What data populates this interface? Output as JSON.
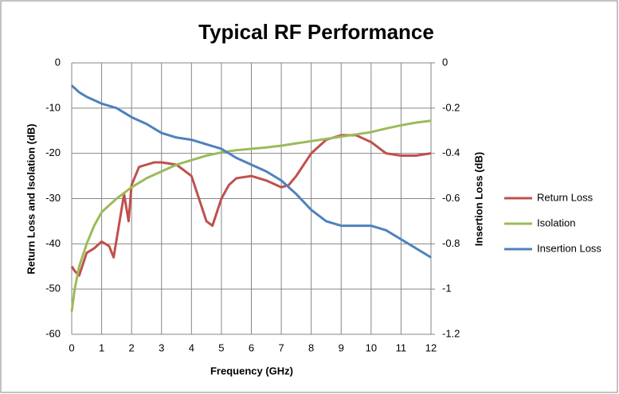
{
  "chart_data": {
    "type": "line",
    "title": "Typical RF Performance",
    "xlabel": "Frequency (GHz)",
    "ylabel": "Return Loss and Isolation (dB)",
    "y2label": "Insertion Loss (dB)",
    "xlim": [
      0,
      12
    ],
    "xticks": [
      0,
      1,
      2,
      3,
      4,
      5,
      6,
      7,
      8,
      9,
      10,
      11,
      12
    ],
    "ylim": [
      -60,
      0
    ],
    "yticks": [
      -60,
      -50,
      -40,
      -30,
      -20,
      -10,
      0
    ],
    "y2lim": [
      -1.2,
      0
    ],
    "y2ticks": [
      -1.2,
      -1,
      -0.8,
      -0.6,
      -0.4,
      -0.2,
      0
    ],
    "grid": true,
    "legend": "right",
    "series": [
      {
        "name": "Return Loss",
        "color": "#c0504d",
        "axis": "y",
        "x": [
          0,
          0.1,
          0.25,
          0.5,
          0.75,
          1,
          1.25,
          1.4,
          1.5,
          1.75,
          1.9,
          2,
          2.25,
          2.5,
          2.75,
          3,
          3.5,
          4,
          4.25,
          4.5,
          4.7,
          5,
          5.25,
          5.5,
          6,
          6.5,
          7,
          7.25,
          7.5,
          8,
          8.5,
          9,
          9.5,
          10,
          10.5,
          11,
          11.5,
          12
        ],
        "values": [
          -45,
          -46,
          -47,
          -42,
          -41,
          -39.5,
          -40.5,
          -43,
          -39,
          -29,
          -35,
          -27,
          -23,
          -22.5,
          -22,
          -22,
          -22.5,
          -25,
          -30,
          -35,
          -36,
          -30,
          -27,
          -25.5,
          -25,
          -26,
          -27.5,
          -27,
          -25,
          -20,
          -17,
          -16,
          -16,
          -17.5,
          -20,
          -20.5,
          -20.5,
          -20
        ]
      },
      {
        "name": "Isolation",
        "color": "#9bbb59",
        "axis": "y",
        "x": [
          0,
          0.1,
          0.25,
          0.5,
          0.75,
          1,
          1.5,
          2,
          2.5,
          3,
          3.5,
          4,
          4.5,
          5,
          5.5,
          6,
          6.5,
          7,
          7.5,
          8,
          8.5,
          9,
          9.5,
          10,
          10.5,
          11,
          11.5,
          12
        ],
        "values": [
          -55,
          -50,
          -45,
          -40,
          -36,
          -33,
          -30,
          -27.5,
          -25.5,
          -24,
          -22.5,
          -21.5,
          -20.5,
          -19.8,
          -19.3,
          -19,
          -18.7,
          -18.3,
          -17.8,
          -17.3,
          -16.8,
          -16.3,
          -15.8,
          -15.3,
          -14.5,
          -13.8,
          -13.2,
          -12.8
        ]
      },
      {
        "name": "Insertion Loss",
        "color": "#4f81bd",
        "axis": "y2",
        "x": [
          0,
          0.25,
          0.5,
          1,
          1.5,
          2,
          2.5,
          3,
          3.5,
          4,
          4.5,
          5,
          5.5,
          6,
          6.5,
          7,
          7.5,
          8,
          8.5,
          9,
          9.5,
          10,
          10.5,
          11,
          11.5,
          12
        ],
        "values": [
          -0.1,
          -0.13,
          -0.15,
          -0.18,
          -0.2,
          -0.24,
          -0.27,
          -0.31,
          -0.33,
          -0.34,
          -0.36,
          -0.38,
          -0.42,
          -0.45,
          -0.48,
          -0.52,
          -0.58,
          -0.65,
          -0.7,
          -0.72,
          -0.72,
          -0.72,
          -0.74,
          -0.78,
          -0.82,
          -0.86
        ]
      }
    ]
  }
}
